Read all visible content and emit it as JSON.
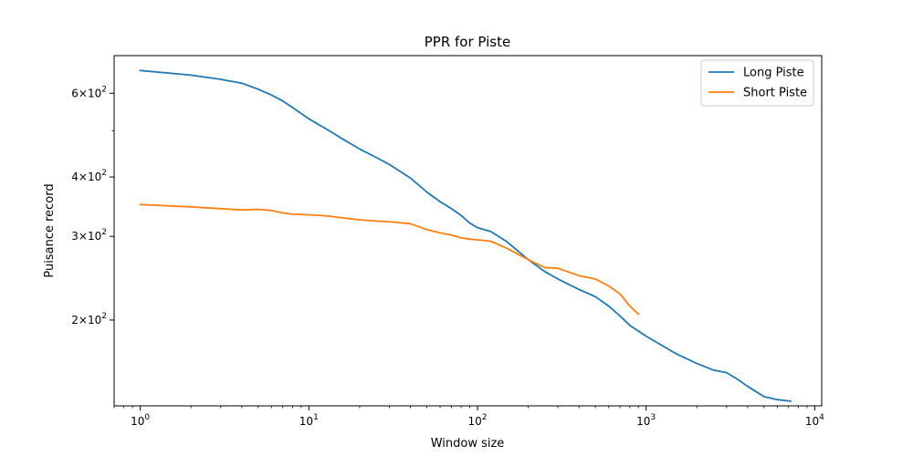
{
  "chart_data": {
    "type": "line",
    "title": "PPR for Piste",
    "xlabel": "Window size",
    "ylabel": "Puisance record",
    "xscale": "log",
    "yscale": "log",
    "xlim": [
      0.7,
      11000
    ],
    "ylim": [
      132,
      720
    ],
    "x_ticks": [
      {
        "value": 1,
        "base": "10",
        "exp": "0"
      },
      {
        "value": 10,
        "base": "10",
        "exp": "1"
      },
      {
        "value": 100,
        "base": "10",
        "exp": "2"
      },
      {
        "value": 1000,
        "base": "10",
        "exp": "3"
      },
      {
        "value": 10000,
        "base": "10",
        "exp": "4"
      }
    ],
    "y_ticks": [
      {
        "value": 200,
        "mant": "2",
        "exp": "2"
      },
      {
        "value": 300,
        "mant": "3",
        "exp": "2"
      },
      {
        "value": 400,
        "mant": "4",
        "exp": "2"
      },
      {
        "value": 600,
        "mant": "6",
        "exp": "2"
      }
    ],
    "y_minor_ticks": [
      500
    ],
    "grid": false,
    "legend_position": "top-right",
    "series": [
      {
        "name": "Long Piste",
        "color": "#1f77b4",
        "points": [
          [
            1,
            670
          ],
          [
            2,
            655
          ],
          [
            3,
            642
          ],
          [
            4,
            630
          ],
          [
            5,
            612
          ],
          [
            6,
            595
          ],
          [
            7,
            578
          ],
          [
            8,
            560
          ],
          [
            10,
            530
          ],
          [
            13,
            502
          ],
          [
            16,
            480
          ],
          [
            20,
            458
          ],
          [
            25,
            440
          ],
          [
            30,
            425
          ],
          [
            40,
            398
          ],
          [
            50,
            372
          ],
          [
            60,
            355
          ],
          [
            70,
            343
          ],
          [
            80,
            332
          ],
          [
            90,
            320
          ],
          [
            100,
            313
          ],
          [
            120,
            307
          ],
          [
            150,
            292
          ],
          [
            200,
            268
          ],
          [
            250,
            253
          ],
          [
            300,
            244
          ],
          [
            400,
            232
          ],
          [
            500,
            224
          ],
          [
            600,
            214
          ],
          [
            700,
            204
          ],
          [
            800,
            195
          ],
          [
            1000,
            185
          ],
          [
            1500,
            170
          ],
          [
            2000,
            162
          ],
          [
            2500,
            157
          ],
          [
            3000,
            155
          ],
          [
            3500,
            150
          ],
          [
            4000,
            145
          ],
          [
            5000,
            138
          ],
          [
            6000,
            136
          ],
          [
            7200,
            135
          ]
        ]
      },
      {
        "name": "Short Piste",
        "color": "#ff7f0e",
        "points": [
          [
            1,
            350
          ],
          [
            2,
            346
          ],
          [
            3,
            343
          ],
          [
            4,
            341
          ],
          [
            5,
            342
          ],
          [
            6,
            340
          ],
          [
            7,
            336
          ],
          [
            8,
            334
          ],
          [
            10,
            333
          ],
          [
            13,
            331
          ],
          [
            16,
            328
          ],
          [
            20,
            325
          ],
          [
            25,
            323
          ],
          [
            30,
            322
          ],
          [
            40,
            319
          ],
          [
            50,
            310
          ],
          [
            60,
            305
          ],
          [
            70,
            302
          ],
          [
            80,
            298
          ],
          [
            90,
            296
          ],
          [
            100,
            295
          ],
          [
            120,
            293
          ],
          [
            150,
            283
          ],
          [
            200,
            268
          ],
          [
            250,
            258
          ],
          [
            300,
            257
          ],
          [
            400,
            248
          ],
          [
            500,
            244
          ],
          [
            600,
            236
          ],
          [
            700,
            227
          ],
          [
            800,
            214
          ],
          [
            900,
            206
          ]
        ]
      }
    ]
  }
}
